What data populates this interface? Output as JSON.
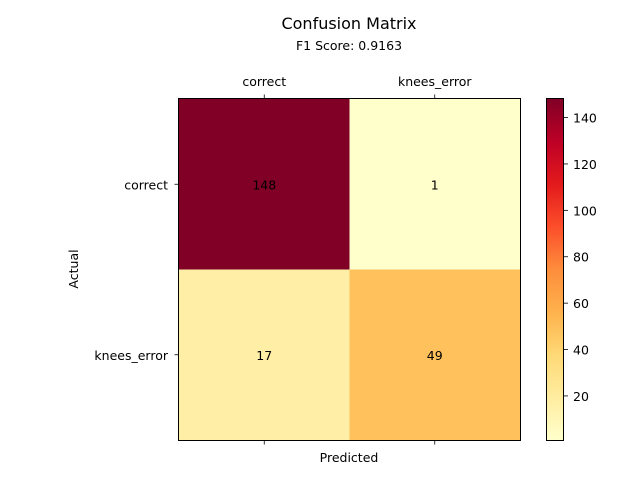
{
  "chart_data": {
    "type": "heatmap",
    "title": "Confusion Matrix",
    "subtitle": "F1 Score: 0.9163",
    "xlabel": "Predicted",
    "ylabel": "Actual",
    "x_categories": [
      "correct",
      "knees_error"
    ],
    "y_categories": [
      "correct",
      "knees_error"
    ],
    "values": [
      [
        148,
        1
      ],
      [
        17,
        49
      ]
    ],
    "colormap": "YlOrRd",
    "colorbar": {
      "range": [
        1,
        148
      ],
      "ticks": [
        20,
        40,
        60,
        80,
        100,
        120,
        140
      ]
    },
    "x_tick_position": "top",
    "grid": false
  }
}
